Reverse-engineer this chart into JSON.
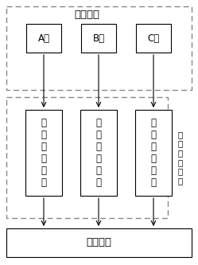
{
  "title": "三相母线",
  "phase_labels": [
    "A相",
    "B相",
    "C相"
  ],
  "cap_labels": [
    "电\n容\n分\n压\n器\n一",
    "电\n容\n分\n压\n器\n二",
    "电\n容\n分\n压\n器\n三"
  ],
  "cap_side_label": "电\n容\n分\n压\n模\n块",
  "monitor_label": "监测装置",
  "bg_color": "#ffffff",
  "solid_color": "#000000",
  "dash_color": "#888888",
  "fig_w": 2.49,
  "fig_h": 3.33,
  "dpi": 100
}
